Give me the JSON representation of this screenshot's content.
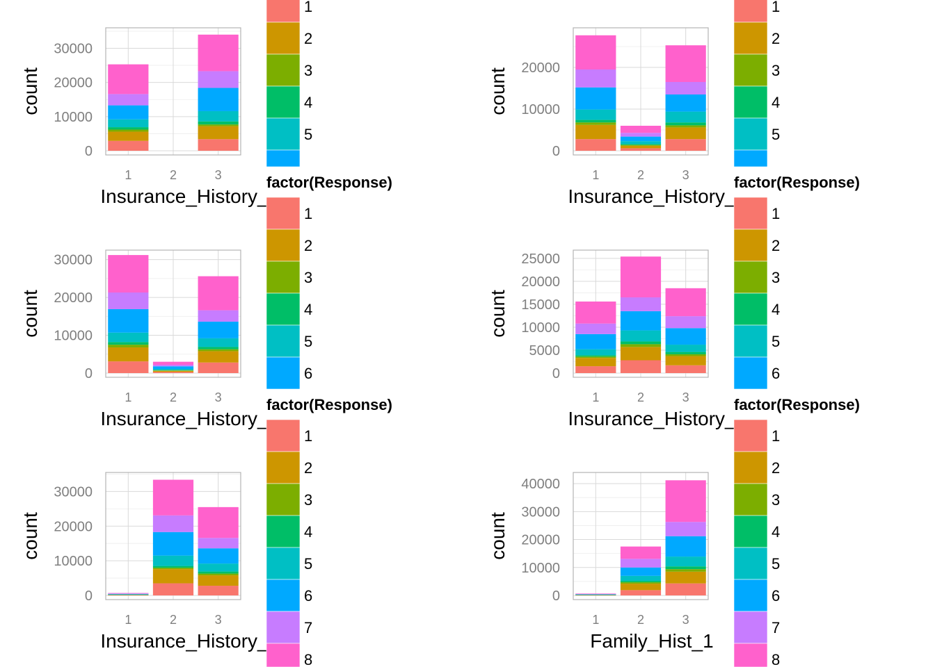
{
  "chart_data": [
    {
      "type": "bar",
      "stacked": true,
      "xlabel": "Insurance_History_",
      "ylabel": "count",
      "categories": [
        "1",
        "2",
        "3"
      ],
      "ylim": [
        0,
        36000
      ],
      "yticks": [
        0,
        10000,
        20000,
        30000
      ],
      "grid": true,
      "series": [
        {
          "name": "1",
          "values": [
            2900,
            0,
            3400
          ]
        },
        {
          "name": "2",
          "values": [
            2700,
            0,
            3800
          ]
        },
        {
          "name": "3",
          "values": [
            600,
            0,
            500
          ]
        },
        {
          "name": "4",
          "values": [
            700,
            0,
            900
          ]
        },
        {
          "name": "5",
          "values": [
            2300,
            0,
            3000
          ]
        },
        {
          "name": "6",
          "values": [
            4100,
            0,
            6800
          ]
        },
        {
          "name": "7",
          "values": [
            3300,
            0,
            4900
          ]
        },
        {
          "name": "8",
          "values": [
            8700,
            0,
            10700
          ]
        }
      ]
    },
    {
      "type": "bar",
      "stacked": true,
      "xlabel": "Insurance_History_",
      "ylabel": "count",
      "categories": [
        "1",
        "2",
        "3"
      ],
      "ylim": [
        0,
        29500
      ],
      "yticks": [
        0,
        10000,
        20000
      ],
      "grid": true,
      "series": [
        {
          "name": "1",
          "values": [
            2800,
            600,
            2800
          ]
        },
        {
          "name": "2",
          "values": [
            3400,
            600,
            2800
          ]
        },
        {
          "name": "3",
          "values": [
            600,
            200,
            500
          ]
        },
        {
          "name": "4",
          "values": [
            600,
            200,
            700
          ]
        },
        {
          "name": "5",
          "values": [
            2500,
            700,
            2600
          ]
        },
        {
          "name": "6",
          "values": [
            5300,
            1100,
            4100
          ]
        },
        {
          "name": "7",
          "values": [
            4300,
            900,
            3000
          ]
        },
        {
          "name": "8",
          "values": [
            8200,
            1700,
            8800
          ]
        }
      ]
    },
    {
      "type": "bar",
      "stacked": true,
      "xlabel": "Insurance_History_",
      "ylabel": "count",
      "categories": [
        "1",
        "2",
        "3"
      ],
      "ylim": [
        0,
        32500
      ],
      "yticks": [
        0,
        10000,
        20000,
        30000
      ],
      "grid": true,
      "series": [
        {
          "name": "1",
          "values": [
            3100,
            300,
            2800
          ]
        },
        {
          "name": "2",
          "values": [
            3700,
            300,
            3000
          ]
        },
        {
          "name": "3",
          "values": [
            700,
            100,
            500
          ]
        },
        {
          "name": "4",
          "values": [
            700,
            100,
            600
          ]
        },
        {
          "name": "5",
          "values": [
            2500,
            300,
            2300
          ]
        },
        {
          "name": "6",
          "values": [
            6200,
            700,
            4400
          ]
        },
        {
          "name": "7",
          "values": [
            4400,
            400,
            3000
          ]
        },
        {
          "name": "8",
          "values": [
            9900,
            800,
            9000
          ]
        }
      ]
    },
    {
      "type": "bar",
      "stacked": true,
      "xlabel": "Insurance_History_",
      "ylabel": "count",
      "categories": [
        "1",
        "2",
        "3"
      ],
      "ylim": [
        0,
        26800
      ],
      "yticks": [
        0,
        5000,
        10000,
        15000,
        20000,
        25000
      ],
      "grid": true,
      "series": [
        {
          "name": "1",
          "values": [
            1500,
            2800,
            1700
          ]
        },
        {
          "name": "2",
          "values": [
            1800,
            2900,
            2000
          ]
        },
        {
          "name": "3",
          "values": [
            300,
            600,
            400
          ]
        },
        {
          "name": "4",
          "values": [
            300,
            600,
            500
          ]
        },
        {
          "name": "5",
          "values": [
            1300,
            2400,
            1600
          ]
        },
        {
          "name": "6",
          "values": [
            3300,
            4200,
            3600
          ]
        },
        {
          "name": "7",
          "values": [
            2300,
            3000,
            2600
          ]
        },
        {
          "name": "8",
          "values": [
            4800,
            8900,
            6100
          ]
        }
      ]
    },
    {
      "type": "bar",
      "stacked": true,
      "xlabel": "Insurance_History_",
      "ylabel": "count",
      "categories": [
        "1",
        "2",
        "3"
      ],
      "ylim": [
        0,
        35500
      ],
      "yticks": [
        0,
        10000,
        20000,
        30000
      ],
      "grid": true,
      "series": [
        {
          "name": "1",
          "values": [
            100,
            3500,
            2800
          ]
        },
        {
          "name": "2",
          "values": [
            100,
            4100,
            3000
          ]
        },
        {
          "name": "3",
          "values": [
            30,
            400,
            500
          ]
        },
        {
          "name": "4",
          "values": [
            30,
            500,
            600
          ]
        },
        {
          "name": "5",
          "values": [
            80,
            3000,
            2300
          ]
        },
        {
          "name": "6",
          "values": [
            120,
            6800,
            4400
          ]
        },
        {
          "name": "7",
          "values": [
            80,
            4800,
            3000
          ]
        },
        {
          "name": "8",
          "values": [
            160,
            10300,
            8900
          ]
        }
      ]
    },
    {
      "type": "bar",
      "stacked": true,
      "xlabel": "Family_Hist_1",
      "ylabel": "count",
      "categories": [
        "1",
        "2",
        "3"
      ],
      "ylim": [
        0,
        44000
      ],
      "yticks": [
        0,
        10000,
        20000,
        30000,
        40000
      ],
      "grid": true,
      "series": [
        {
          "name": "1",
          "values": [
            100,
            1900,
            4300
          ]
        },
        {
          "name": "2",
          "values": [
            100,
            2300,
            4200
          ]
        },
        {
          "name": "3",
          "values": [
            30,
            500,
            900
          ]
        },
        {
          "name": "4",
          "values": [
            30,
            500,
            1000
          ]
        },
        {
          "name": "5",
          "values": [
            80,
            1800,
            3500
          ]
        },
        {
          "name": "6",
          "values": [
            120,
            3000,
            7300
          ]
        },
        {
          "name": "7",
          "values": [
            80,
            3100,
            5100
          ]
        },
        {
          "name": "8",
          "values": [
            160,
            4400,
            14900
          ]
        }
      ]
    }
  ],
  "legend": {
    "title": "factor(Response)",
    "items": [
      {
        "label": "1",
        "color": "#F8766D"
      },
      {
        "label": "2",
        "color": "#CD9600"
      },
      {
        "label": "3",
        "color": "#7CAE00"
      },
      {
        "label": "4",
        "color": "#00BE67"
      },
      {
        "label": "5",
        "color": "#00BFC4"
      },
      {
        "label": "6",
        "color": "#00A9FF"
      },
      {
        "label": "7",
        "color": "#C77CFF"
      },
      {
        "label": "8",
        "color": "#FF61CC"
      }
    ]
  }
}
